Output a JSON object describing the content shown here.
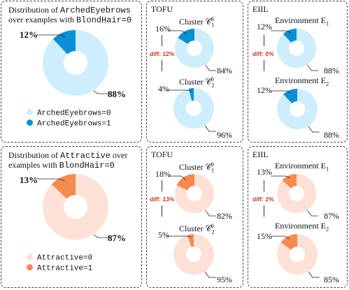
{
  "colors": {
    "blue_light": "#cdeefa",
    "blue_dark": "#0b8fd4",
    "orange_light": "#fde0d6",
    "orange_dark": "#f58a4f",
    "diff_red": "#c0391b"
  },
  "top": {
    "overview": {
      "title_line1_pre": "Distribution of ",
      "title_line1_attr": "ArchedEyebrows",
      "title_line2_pre": "over examples with ",
      "title_line2_attr": "BlondHair=0",
      "small_pct": "12%",
      "large_pct": "88%",
      "legend0": "ArchedEyebrows=0",
      "legend1": "ArchedEyebrows=1"
    },
    "tofu": {
      "header": "TOFU",
      "c1_label": "Cluster 𝒞",
      "c2_label": "Cluster 𝒞",
      "c1_small": "16%",
      "c1_large": "84%",
      "c2_small": "4%",
      "c2_large": "96%",
      "diff": "diff: 12%"
    },
    "eiil": {
      "header": "EIIL",
      "e1_label": "Environment E",
      "e2_label": "Environment E",
      "e1_small": "12%",
      "e1_large": "88%",
      "e2_small": "12%",
      "e2_large": "88%",
      "diff": "diff: 0%"
    }
  },
  "bottom": {
    "overview": {
      "title_line1_pre": "Distribution of ",
      "title_line1_attr": "Attractive",
      "title_line1_post": " over",
      "title_line2_pre": "examples with ",
      "title_line2_attr": "BlondHair=0",
      "small_pct": "13%",
      "large_pct": "87%",
      "legend0": "Attractive=0",
      "legend1": "Attractive=1"
    },
    "tofu": {
      "header": "TOFU",
      "c1_label": "Cluster 𝒞",
      "c2_label": "Cluster 𝒞",
      "c1_small": "18%",
      "c1_large": "82%",
      "c2_small": "5%",
      "c2_large": "95%",
      "diff": "diff: 13%"
    },
    "eiil": {
      "header": "EIIL",
      "e1_label": "Environment E",
      "e2_label": "Environment E",
      "e1_small": "13%",
      "e1_large": "87%",
      "e2_small": "15%",
      "e2_large": "85%",
      "diff": "diff: 2%"
    }
  },
  "sub_labels": {
    "one": "1",
    "two": "2",
    "zero": "0"
  },
  "chart_data": [
    {
      "type": "pie",
      "name_ref": "top-overview",
      "slices": [
        {
          "label": "ArchedEyebrows=1",
          "value": 12
        },
        {
          "label": "ArchedEyebrows=0",
          "value": 88
        }
      ]
    },
    {
      "type": "pie",
      "name_ref": "top-tofu-c1",
      "slices": [
        {
          "label": "ArchedEyebrows=1",
          "value": 16
        },
        {
          "label": "ArchedEyebrows=0",
          "value": 84
        }
      ]
    },
    {
      "type": "pie",
      "name_ref": "top-tofu-c2",
      "slices": [
        {
          "label": "ArchedEyebrows=1",
          "value": 4
        },
        {
          "label": "ArchedEyebrows=0",
          "value": 96
        }
      ]
    },
    {
      "type": "pie",
      "name_ref": "top-eiil-e1",
      "slices": [
        {
          "label": "ArchedEyebrows=1",
          "value": 12
        },
        {
          "label": "ArchedEyebrows=0",
          "value": 88
        }
      ]
    },
    {
      "type": "pie",
      "name_ref": "top-eiil-e2",
      "slices": [
        {
          "label": "ArchedEyebrows=1",
          "value": 12
        },
        {
          "label": "ArchedEyebrows=0",
          "value": 88
        }
      ]
    },
    {
      "type": "pie",
      "name_ref": "bottom-overview",
      "slices": [
        {
          "label": "Attractive=1",
          "value": 13
        },
        {
          "label": "Attractive=0",
          "value": 87
        }
      ]
    },
    {
      "type": "pie",
      "name_ref": "bottom-tofu-c1",
      "slices": [
        {
          "label": "Attractive=1",
          "value": 18
        },
        {
          "label": "Attractive=0",
          "value": 82
        }
      ]
    },
    {
      "type": "pie",
      "name_ref": "bottom-tofu-c2",
      "slices": [
        {
          "label": "Attractive=1",
          "value": 5
        },
        {
          "label": "Attractive=0",
          "value": 95
        }
      ]
    },
    {
      "type": "pie",
      "name_ref": "bottom-eiil-e1",
      "slices": [
        {
          "label": "Attractive=1",
          "value": 13
        },
        {
          "label": "Attractive=0",
          "value": 87
        }
      ]
    },
    {
      "type": "pie",
      "name_ref": "bottom-eiil-e2",
      "slices": [
        {
          "label": "Attractive=1",
          "value": 15
        },
        {
          "label": "Attractive=0",
          "value": 85
        }
      ]
    }
  ]
}
